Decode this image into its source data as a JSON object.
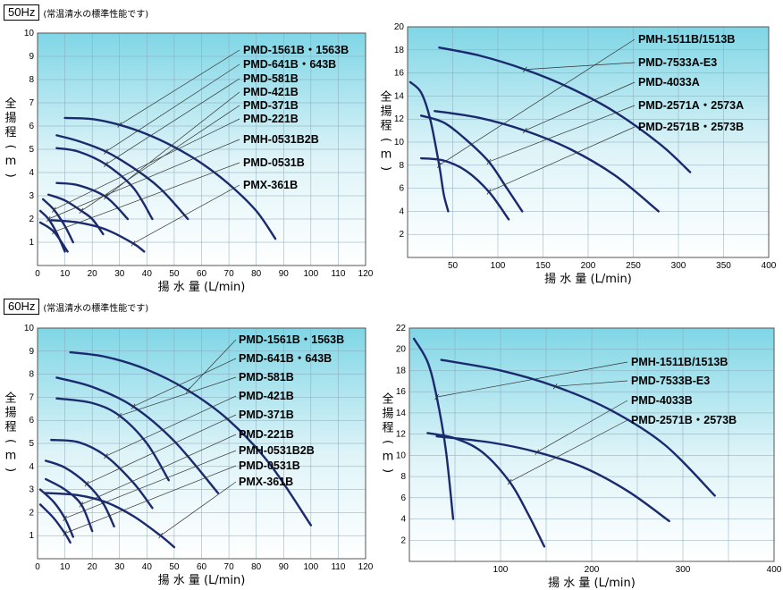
{
  "sections": [
    {
      "hz": "50Hz",
      "note": "(常温清水の標準性能です)"
    },
    {
      "hz": "60Hz",
      "note": "(常温清水の標準性能です)"
    }
  ],
  "colors": {
    "curve": "#1b2a6e",
    "grid": "#8aa6b8",
    "frame": "#555555",
    "bg_top": "#7fd6e6",
    "bg_bottom": "#ffffff"
  },
  "chart_data": [
    {
      "type": "line",
      "id": "pmd-50hz",
      "ylabel": [
        "全",
        "揚",
        "程",
        "(",
        "m",
        ")"
      ],
      "xlabel": "揚 水 量 (L/min)",
      "xlim": [
        0,
        120
      ],
      "ylim": [
        0,
        10
      ],
      "xticks": [
        "0",
        "10",
        "20",
        "30",
        "40",
        "50",
        "60",
        "70",
        "80",
        "90",
        "100",
        "110",
        "120"
      ],
      "yticks": [
        "1",
        "2",
        "3",
        "4",
        "5",
        "6",
        "7",
        "8",
        "9",
        "10"
      ],
      "series": [
        {
          "name": "PMD-1561B・1563B",
          "points": [
            [
              10,
              6.35
            ],
            [
              20,
              6.3
            ],
            [
              30,
              6.05
            ],
            [
              40,
              5.65
            ],
            [
              50,
              5.1
            ],
            [
              60,
              4.4
            ],
            [
              70,
              3.5
            ],
            [
              80,
              2.35
            ],
            [
              87,
              1.15
            ]
          ]
        },
        {
          "name": "PMD-641B・643B",
          "points": [
            [
              7,
              5.6
            ],
            [
              15,
              5.35
            ],
            [
              25,
              4.9
            ],
            [
              35,
              4.2
            ],
            [
              45,
              3.3
            ],
            [
              55,
              2.0
            ]
          ]
        },
        {
          "name": "PMD-581B",
          "points": [
            [
              7,
              5.05
            ],
            [
              15,
              4.9
            ],
            [
              25,
              4.35
            ],
            [
              35,
              3.35
            ],
            [
              42,
              2.0
            ]
          ]
        },
        {
          "name": "PMD-421B",
          "points": [
            [
              7,
              3.55
            ],
            [
              15,
              3.45
            ],
            [
              25,
              2.95
            ],
            [
              33,
              2.0
            ]
          ]
        },
        {
          "name": "PMD-371B",
          "points": [
            [
              4,
              3.05
            ],
            [
              10,
              2.8
            ],
            [
              16,
              2.35
            ],
            [
              20,
              2.0
            ],
            [
              24,
              1.35
            ]
          ]
        },
        {
          "name": "PMD-221B",
          "points": [
            [
              2,
              2.85
            ],
            [
              6,
              2.4
            ],
            [
              10,
              1.7
            ],
            [
              13,
              1.0
            ]
          ]
        },
        {
          "name": "PMH-0531B2B",
          "points": [
            [
              1,
              2.35
            ],
            [
              4,
              2.0
            ],
            [
              7,
              1.4
            ],
            [
              10,
              0.6
            ]
          ]
        },
        {
          "name": "PMD-0531B",
          "points": [
            [
              1,
              1.85
            ],
            [
              6,
              1.45
            ],
            [
              11,
              0.6
            ]
          ]
        },
        {
          "name": "PMX-361B",
          "points": [
            [
              5,
              1.95
            ],
            [
              15,
              1.85
            ],
            [
              25,
              1.55
            ],
            [
              35,
              0.95
            ],
            [
              39,
              0.6
            ]
          ]
        }
      ]
    },
    {
      "type": "line",
      "id": "pmh-50hz",
      "ylabel": [
        "全",
        "揚",
        "程",
        "(",
        "m",
        ")"
      ],
      "xlabel": "揚 水 量 (L/min)",
      "xlim": [
        0,
        400
      ],
      "ylim": [
        0,
        20
      ],
      "xticks": [
        "50",
        "100",
        "150",
        "200",
        "250",
        "300",
        "350",
        "400"
      ],
      "yticks": [
        "2",
        "4",
        "6",
        "8",
        "10",
        "12",
        "14",
        "16",
        "18",
        "20"
      ],
      "series": [
        {
          "name": "PMH-1511B/1513B",
          "points": [
            [
              3,
              15.2
            ],
            [
              15,
              14.3
            ],
            [
              25,
              12.0
            ],
            [
              35,
              8.0
            ],
            [
              40,
              5.5
            ],
            [
              45,
              4.0
            ]
          ]
        },
        {
          "name": "PMD-7533A-E3",
          "points": [
            [
              35,
              18.2
            ],
            [
              80,
              17.5
            ],
            [
              130,
              16.3
            ],
            [
              180,
              14.7
            ],
            [
              230,
              12.6
            ],
            [
              280,
              9.8
            ],
            [
              313,
              7.4
            ]
          ]
        },
        {
          "name": "PMD-4033A",
          "points": [
            [
              30,
              12.7
            ],
            [
              80,
              12.1
            ],
            [
              130,
              11.0
            ],
            [
              180,
              9.4
            ],
            [
              230,
              7.1
            ],
            [
              278,
              4.0
            ]
          ]
        },
        {
          "name": "PMD-2571A・2573A",
          "points": [
            [
              15,
              12.3
            ],
            [
              40,
              11.7
            ],
            [
              65,
              10.2
            ],
            [
              90,
              8.3
            ],
            [
              110,
              6.0
            ],
            [
              127,
              4.0
            ]
          ]
        },
        {
          "name": "PMD-2571B・2573B",
          "points": [
            [
              15,
              8.6
            ],
            [
              40,
              8.4
            ],
            [
              65,
              7.5
            ],
            [
              90,
              5.7
            ],
            [
              112,
              3.3
            ]
          ]
        }
      ]
    },
    {
      "type": "line",
      "id": "pmd-60hz",
      "ylabel": [
        "全",
        "揚",
        "程",
        "(",
        "m",
        ")"
      ],
      "xlabel": "揚 水 量 (L/min)",
      "xlim": [
        0,
        120
      ],
      "ylim": [
        0,
        10
      ],
      "xticks": [
        "0",
        "10",
        "20",
        "30",
        "40",
        "50",
        "60",
        "70",
        "80",
        "90",
        "100",
        "110",
        "120"
      ],
      "yticks": [
        "1",
        "2",
        "3",
        "4",
        "5",
        "6",
        "7",
        "8",
        "9",
        "10"
      ],
      "series": [
        {
          "name": "PMD-1561B・1563B",
          "points": [
            [
              12,
              8.95
            ],
            [
              25,
              8.75
            ],
            [
              40,
              8.2
            ],
            [
              55,
              7.3
            ],
            [
              70,
              6.0
            ],
            [
              85,
              4.1
            ],
            [
              100,
              1.45
            ]
          ]
        },
        {
          "name": "PMD-641B・643B",
          "points": [
            [
              7,
              7.85
            ],
            [
              20,
              7.45
            ],
            [
              35,
              6.6
            ],
            [
              50,
              5.1
            ],
            [
              66,
              2.85
            ]
          ]
        },
        {
          "name": "PMD-581B",
          "points": [
            [
              7,
              6.95
            ],
            [
              20,
              6.75
            ],
            [
              30,
              6.2
            ],
            [
              40,
              5.0
            ],
            [
              48,
              3.4
            ]
          ]
        },
        {
          "name": "PMD-421B",
          "points": [
            [
              5,
              5.15
            ],
            [
              15,
              5.05
            ],
            [
              25,
              4.45
            ],
            [
              35,
              3.3
            ],
            [
              42,
              2.2
            ]
          ]
        },
        {
          "name": "PMD-371B",
          "points": [
            [
              3,
              4.25
            ],
            [
              10,
              3.95
            ],
            [
              18,
              3.25
            ],
            [
              24,
              2.4
            ],
            [
              28,
              1.4
            ]
          ]
        },
        {
          "name": "PMD-221B",
          "points": [
            [
              3,
              3.45
            ],
            [
              10,
              3.0
            ],
            [
              16,
              2.35
            ],
            [
              20,
              1.2
            ]
          ]
        },
        {
          "name": "PMH-0531B2B",
          "points": [
            [
              1,
              3.0
            ],
            [
              6,
              2.45
            ],
            [
              10,
              1.75
            ],
            [
              13,
              0.95
            ]
          ]
        },
        {
          "name": "PMD-0531B",
          "points": [
            [
              1,
              2.35
            ],
            [
              6,
              1.75
            ],
            [
              10,
              1.1
            ],
            [
              12,
              0.7
            ]
          ]
        },
        {
          "name": "PMX-361B",
          "points": [
            [
              3,
              2.85
            ],
            [
              15,
              2.75
            ],
            [
              25,
              2.45
            ],
            [
              35,
              1.85
            ],
            [
              45,
              1.0
            ],
            [
              50,
              0.5
            ]
          ]
        }
      ]
    },
    {
      "type": "line",
      "id": "pmh-60hz",
      "ylabel": [
        "全",
        "揚",
        "程",
        "(",
        "m",
        ")"
      ],
      "xlabel": "揚 水 量 (L/min)",
      "xlim": [
        0,
        400
      ],
      "ylim": [
        0,
        22
      ],
      "xticks": [
        "100",
        "200",
        "300",
        "400"
      ],
      "yticks": [
        "2",
        "4",
        "6",
        "8",
        "10",
        "12",
        "14",
        "16",
        "18",
        "20",
        "22"
      ],
      "series": [
        {
          "name": "PMH-1511B/1513B",
          "points": [
            [
              5,
              21.0
            ],
            [
              20,
              18.8
            ],
            [
              30,
              15.5
            ],
            [
              40,
              10.5
            ],
            [
              48,
              4.0
            ]
          ]
        },
        {
          "name": "PMD-7533B-E3",
          "points": [
            [
              35,
              19.0
            ],
            [
              100,
              18.0
            ],
            [
              160,
              16.5
            ],
            [
              220,
              14.3
            ],
            [
              280,
              11.0
            ],
            [
              335,
              6.2
            ]
          ]
        },
        {
          "name": "PMD-4033B",
          "points": [
            [
              30,
              11.8
            ],
            [
              90,
              11.2
            ],
            [
              140,
              10.3
            ],
            [
              190,
              8.9
            ],
            [
              240,
              6.6
            ],
            [
              285,
              3.8
            ]
          ]
        },
        {
          "name": "PMD-2571B・2573B",
          "points": [
            [
              20,
              12.1
            ],
            [
              50,
              11.6
            ],
            [
              80,
              10.3
            ],
            [
              110,
              7.5
            ],
            [
              130,
              4.5
            ],
            [
              148,
              1.4
            ]
          ]
        }
      ]
    }
  ]
}
